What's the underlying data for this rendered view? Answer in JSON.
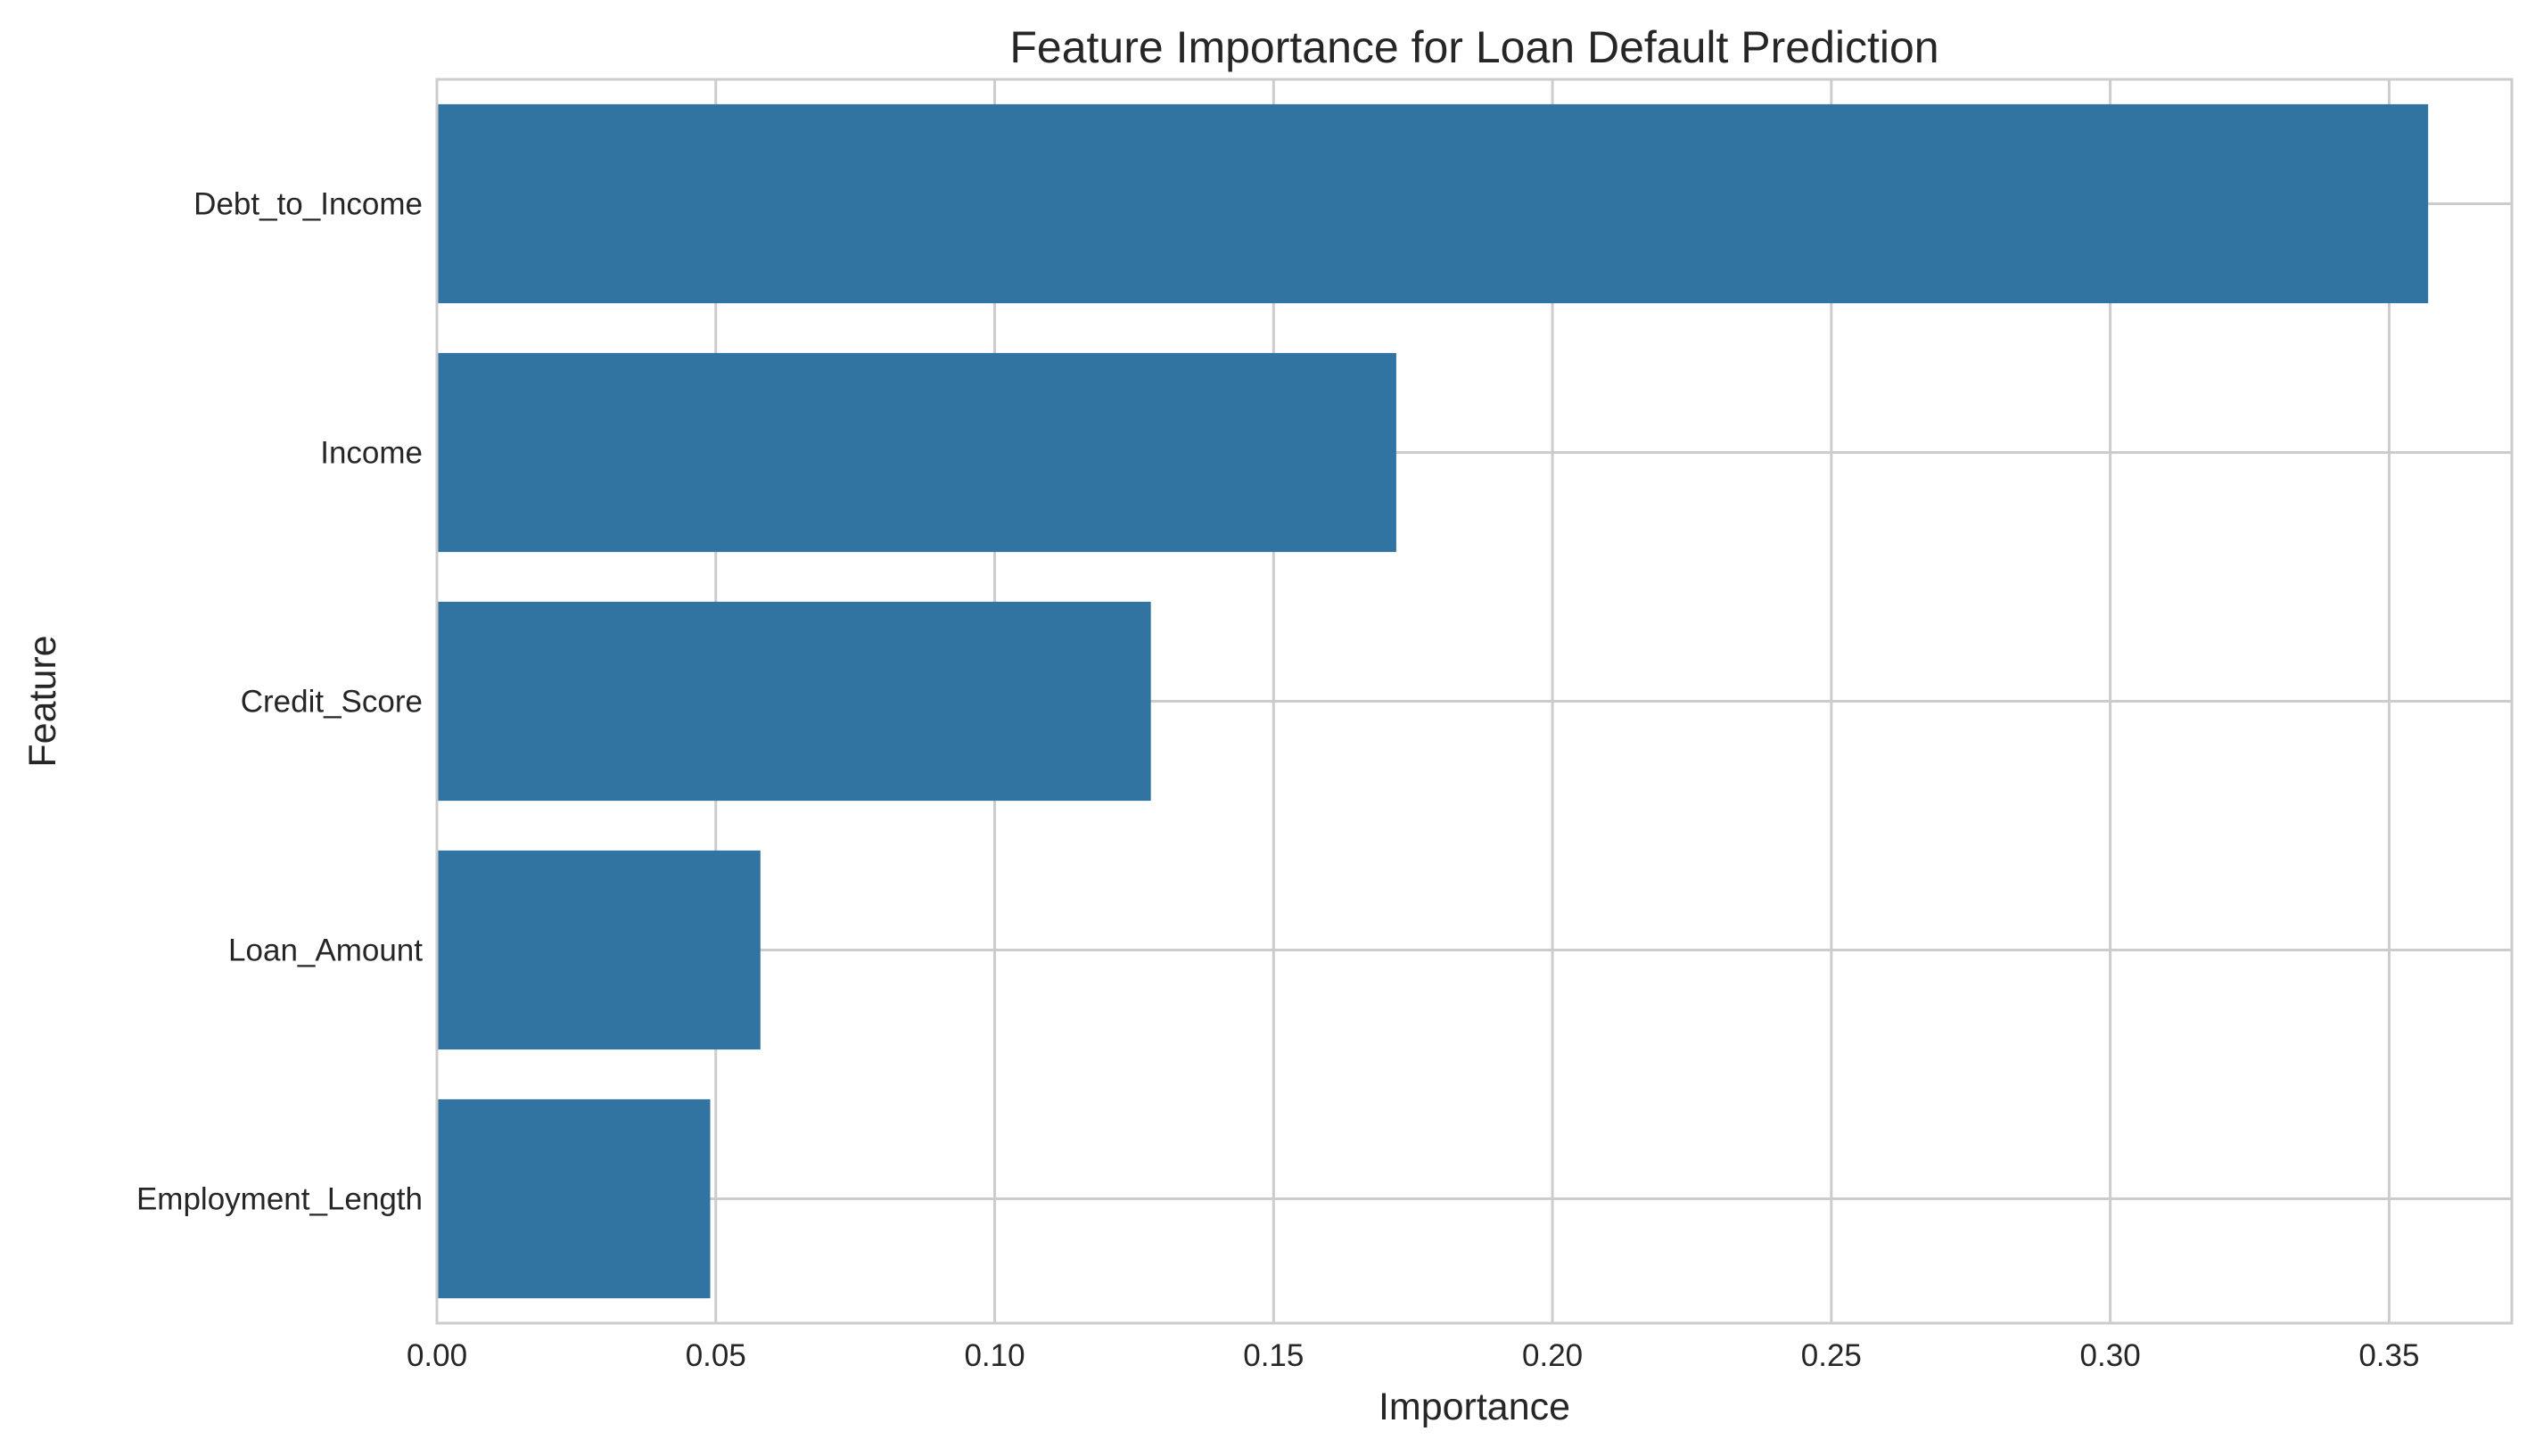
{
  "chart_data": {
    "type": "bar",
    "orientation": "horizontal",
    "title": "Feature Importance for Loan Default Prediction",
    "xlabel": "Importance",
    "ylabel": "Feature",
    "categories": [
      "Debt_to_Income",
      "Income",
      "Credit_Score",
      "Loan_Amount",
      "Employment_Length"
    ],
    "values": [
      0.357,
      0.172,
      0.128,
      0.058,
      0.049
    ],
    "xlim": [
      0,
      0.372
    ],
    "xticks": [
      0.0,
      0.05,
      0.1,
      0.15,
      0.2,
      0.25,
      0.3,
      0.35
    ],
    "xtick_labels": [
      "0.00",
      "0.05",
      "0.10",
      "0.15",
      "0.20",
      "0.25",
      "0.30",
      "0.35"
    ],
    "grid": true,
    "bar_color": "#3274a1"
  }
}
